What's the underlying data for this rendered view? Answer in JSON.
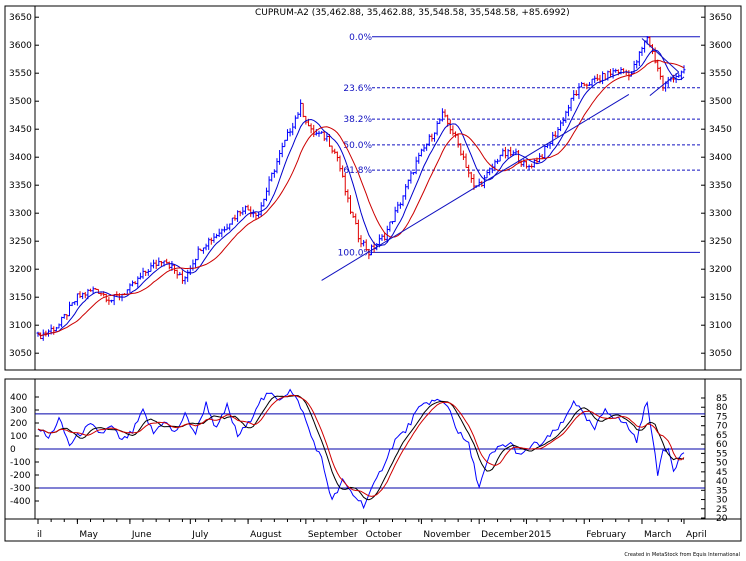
{
  "chart_data": [
    {
      "type": "candlestick",
      "title": "CUPRUM-A2 (35,462.88, 35,462.88, 35,548.58, 35,548.58, +85.6992)",
      "ylim": [
        3020,
        3670
      ],
      "yticks": [
        3050,
        3100,
        3150,
        3200,
        3250,
        3300,
        3350,
        3400,
        3450,
        3500,
        3550,
        3600,
        3650
      ],
      "months": [
        "il",
        "May",
        "June",
        "July",
        "August",
        "September",
        "October",
        "November",
        "December",
        "2015",
        "February",
        "March",
        "April"
      ],
      "colors": {
        "up": "#0000ff",
        "down": "#e00000",
        "ma_fast": "#0000cc",
        "ma_slow": "#cc0000",
        "fib": "#1010c0"
      },
      "fibonacci": [
        {
          "label": "0.0%",
          "value": 3615
        },
        {
          "label": "23.6%",
          "value": 3524
        },
        {
          "label": "38.2%",
          "value": 3468
        },
        {
          "label": "50.0%",
          "value": 3422
        },
        {
          "label": "61.8%",
          "value": 3377
        },
        {
          "label": "100.0%",
          "value": 3230
        }
      ],
      "trendline": {
        "from": {
          "i": 108,
          "v": 3180
        },
        "to": {
          "i": 225,
          "v": 3512
        }
      },
      "triangle": {
        "apex": {
          "i": 244,
          "v": 3552
        },
        "upper": {
          "i": 230,
          "v": 3612
        },
        "lower": {
          "i": 233,
          "v": 3510
        }
      },
      "anchors": [
        [
          0,
          3080
        ],
        [
          8,
          3100
        ],
        [
          15,
          3150
        ],
        [
          22,
          3165
        ],
        [
          28,
          3145
        ],
        [
          35,
          3165
        ],
        [
          42,
          3200
        ],
        [
          48,
          3220
        ],
        [
          55,
          3180
        ],
        [
          62,
          3240
        ],
        [
          70,
          3270
        ],
        [
          78,
          3310
        ],
        [
          84,
          3300
        ],
        [
          90,
          3380
        ],
        [
          96,
          3450
        ],
        [
          100,
          3490
        ],
        [
          104,
          3445
        ],
        [
          110,
          3435
        ],
        [
          114,
          3400
        ],
        [
          118,
          3320
        ],
        [
          122,
          3260
        ],
        [
          126,
          3230
        ],
        [
          132,
          3260
        ],
        [
          138,
          3320
        ],
        [
          144,
          3390
        ],
        [
          150,
          3440
        ],
        [
          154,
          3475
        ],
        [
          158,
          3445
        ],
        [
          162,
          3400
        ],
        [
          166,
          3345
        ],
        [
          170,
          3360
        ],
        [
          176,
          3405
        ],
        [
          182,
          3405
        ],
        [
          186,
          3380
        ],
        [
          192,
          3405
        ],
        [
          198,
          3450
        ],
        [
          204,
          3510
        ],
        [
          208,
          3530
        ],
        [
          214,
          3540
        ],
        [
          220,
          3555
        ],
        [
          226,
          3550
        ],
        [
          232,
          3615
        ],
        [
          236,
          3560
        ],
        [
          238,
          3525
        ],
        [
          242,
          3545
        ],
        [
          246,
          3550
        ]
      ]
    },
    {
      "type": "line",
      "title": "",
      "ylim": [
        -500,
        500
      ],
      "yticks": [
        400,
        300,
        200,
        100,
        0,
        -100,
        -200,
        -300,
        -400
      ],
      "right_ticks": [
        85,
        80,
        75,
        70,
        65,
        60,
        55,
        50,
        45,
        40,
        35,
        30,
        25,
        20
      ],
      "hlines": [
        270,
        0,
        -300
      ],
      "colors": {
        "osc": "#0000ff",
        "sig1": "#000000",
        "sig2": "#d00000",
        "hline": "#0000aa"
      },
      "anchors": [
        [
          0,
          170
        ],
        [
          4,
          80
        ],
        [
          8,
          230
        ],
        [
          12,
          30
        ],
        [
          16,
          120
        ],
        [
          20,
          180
        ],
        [
          24,
          120
        ],
        [
          28,
          170
        ],
        [
          32,
          60
        ],
        [
          36,
          130
        ],
        [
          40,
          290
        ],
        [
          44,
          120
        ],
        [
          48,
          220
        ],
        [
          52,
          120
        ],
        [
          56,
          260
        ],
        [
          60,
          120
        ],
        [
          64,
          350
        ],
        [
          68,
          150
        ],
        [
          72,
          330
        ],
        [
          76,
          100
        ],
        [
          80,
          190
        ],
        [
          84,
          360
        ],
        [
          88,
          420
        ],
        [
          92,
          390
        ],
        [
          96,
          450
        ],
        [
          100,
          330
        ],
        [
          104,
          100
        ],
        [
          108,
          -80
        ],
        [
          112,
          -400
        ],
        [
          116,
          -250
        ],
        [
          120,
          -350
        ],
        [
          124,
          -430
        ],
        [
          128,
          -280
        ],
        [
          132,
          -100
        ],
        [
          136,
          70
        ],
        [
          140,
          140
        ],
        [
          144,
          280
        ],
        [
          148,
          360
        ],
        [
          152,
          370
        ],
        [
          156,
          340
        ],
        [
          160,
          130
        ],
        [
          164,
          30
        ],
        [
          168,
          -290
        ],
        [
          172,
          -60
        ],
        [
          176,
          20
        ],
        [
          180,
          40
        ],
        [
          184,
          -60
        ],
        [
          188,
          30
        ],
        [
          192,
          40
        ],
        [
          196,
          120
        ],
        [
          200,
          200
        ],
        [
          204,
          380
        ],
        [
          208,
          250
        ],
        [
          212,
          150
        ],
        [
          216,
          310
        ],
        [
          220,
          240
        ],
        [
          224,
          190
        ],
        [
          228,
          70
        ],
        [
          232,
          380
        ],
        [
          234,
          80
        ],
        [
          236,
          -200
        ],
        [
          238,
          0
        ],
        [
          240,
          10
        ],
        [
          242,
          -150
        ],
        [
          246,
          -20
        ]
      ]
    }
  ],
  "footer": {
    "credit": "Created in MetaStock from Equis International"
  }
}
